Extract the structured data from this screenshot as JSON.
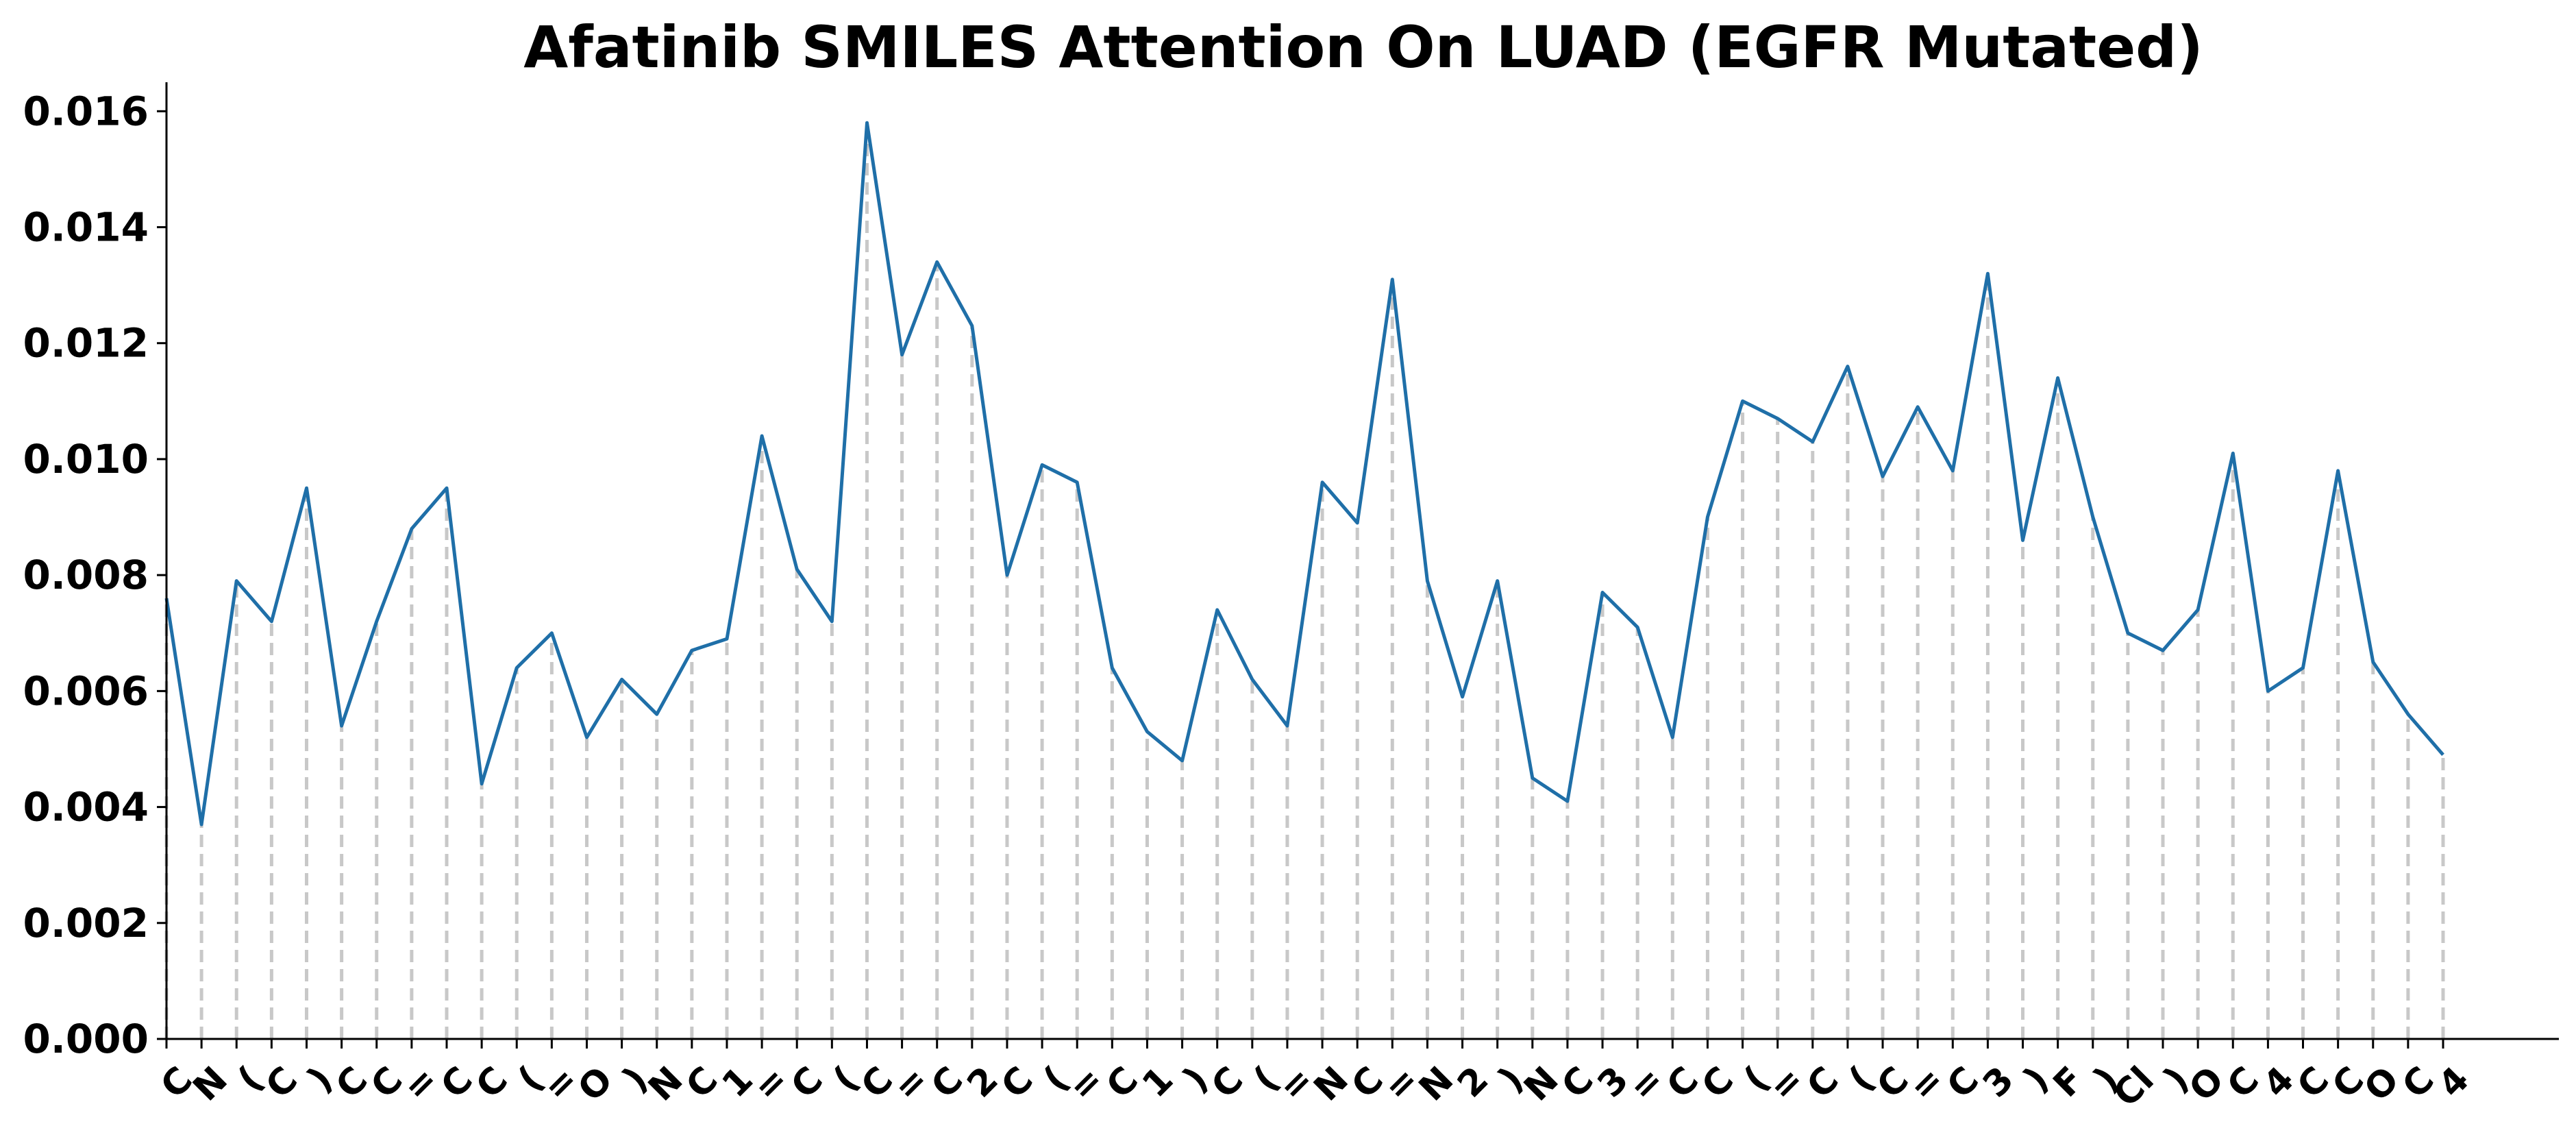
{
  "chart_data": {
    "type": "line",
    "title": "Afatinib SMILES Attention On LUAD (EGFR Mutated)",
    "xlabel": "",
    "ylabel": "",
    "ylim": [
      0,
      0.0165
    ],
    "yticks": [
      "0.000",
      "0.002",
      "0.004",
      "0.006",
      "0.008",
      "0.010",
      "0.012",
      "0.014",
      "0.016"
    ],
    "ytick_values": [
      0,
      0.002,
      0.004,
      0.006,
      0.008,
      0.01,
      0.012,
      0.014,
      0.016
    ],
    "grid": false,
    "legend": "none",
    "stems": "dashed grey drop lines from each point to the x-axis",
    "line_color": "#1f6fa8",
    "stem_color": "#c8c8c8",
    "categories": [
      "C",
      "N",
      "(",
      "C",
      ")",
      "C",
      "C",
      "=",
      "C",
      "C",
      "(",
      "=",
      "O",
      ")",
      "N",
      "C",
      "1",
      "=",
      "C",
      "(",
      "C",
      "=",
      "C",
      "2",
      "C",
      "(",
      "=",
      "C",
      "1",
      ")",
      "C",
      "(",
      "=",
      "N",
      "C",
      "=",
      "N",
      "2",
      ")",
      "N",
      "C",
      "3",
      "=",
      "C",
      "C",
      "(",
      "=",
      "C",
      "(",
      "C",
      "=",
      "C",
      "3",
      ")",
      "F",
      ")",
      "Cl",
      ")",
      "O",
      "C",
      "4",
      "C",
      "C",
      "O",
      "C",
      "4"
    ],
    "values": [
      0.0076,
      0.0037,
      0.0079,
      0.0072,
      0.0095,
      0.0054,
      0.0072,
      0.0088,
      0.0095,
      0.0044,
      0.0064,
      0.007,
      0.0052,
      0.0062,
      0.0056,
      0.0067,
      0.0069,
      0.0104,
      0.0081,
      0.0072,
      0.0158,
      0.0118,
      0.0134,
      0.0123,
      0.008,
      0.0099,
      0.0096,
      0.0064,
      0.0053,
      0.0048,
      0.0074,
      0.0062,
      0.0054,
      0.0096,
      0.0089,
      0.0131,
      0.0079,
      0.0059,
      0.0079,
      0.0045,
      0.0041,
      0.0077,
      0.0071,
      0.0052,
      0.009,
      0.011,
      0.0107,
      0.0103,
      0.0116,
      0.0097,
      0.0109,
      0.0098,
      0.0132,
      0.0086,
      0.0114,
      0.009,
      0.007,
      0.0067,
      0.0074,
      0.0101,
      0.006,
      0.0064,
      0.0098,
      0.0065,
      0.0056,
      0.0049
    ]
  }
}
